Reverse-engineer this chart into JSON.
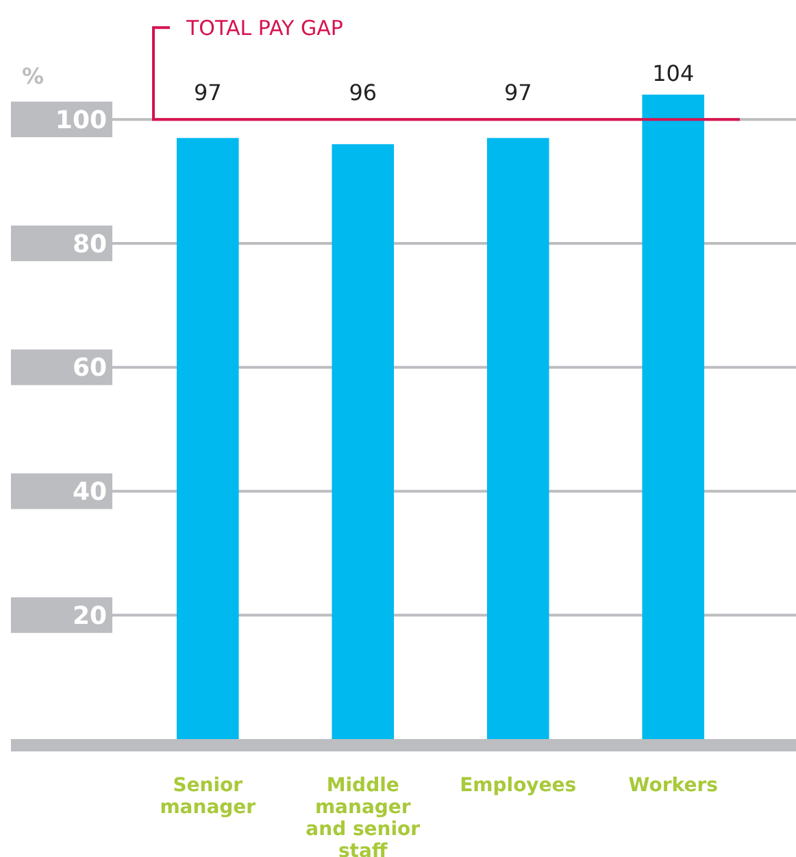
{
  "chart_data": {
    "type": "bar",
    "ylabel": "%",
    "categories": [
      "Senior manager",
      "Middle manager and senior staff",
      "Employees",
      "Workers"
    ],
    "values": [
      97,
      96,
      97,
      104
    ],
    "color": "#00b9ef",
    "data_labels": true,
    "ylim": [
      0,
      104
    ],
    "yticks": [
      20,
      40,
      60,
      80,
      100
    ],
    "grid": "y",
    "ref_lines": [
      {
        "axis": "y",
        "value": 100,
        "label": "TOTAL PAY GAP",
        "color": "#d6134f"
      }
    ]
  }
}
